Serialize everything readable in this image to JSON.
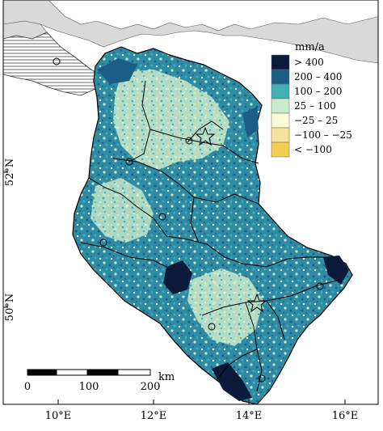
{
  "legend": {
    "title": "mm/a",
    "classes": [
      {
        "label": "> 400",
        "color": "#0b1a3a"
      },
      {
        "label": "200 – 400",
        "color": "#1c5d86"
      },
      {
        "label": "100 – 200",
        "color": "#43aeb4"
      },
      {
        "label": "25 – 100",
        "color": "#c8ebcc"
      },
      {
        "label": "−25 – 25",
        "color": "#fbfbd8"
      },
      {
        "label": "−100 – −25",
        "color": "#f4e39a"
      },
      {
        "label": "< −100",
        "color": "#f2cf52"
      }
    ]
  },
  "scalebar": {
    "ticks": [
      "0",
      "100",
      "200"
    ],
    "unit": "km"
  },
  "axes": {
    "lat_labels": [
      "52°N",
      "50°N"
    ],
    "lon_labels": [
      "10°E",
      "12°E",
      "14°E",
      "16°E"
    ]
  },
  "colors": {
    "land_gray": "#d9d9d9",
    "sea_white": "#ffffff",
    "boundary": "#000000"
  }
}
